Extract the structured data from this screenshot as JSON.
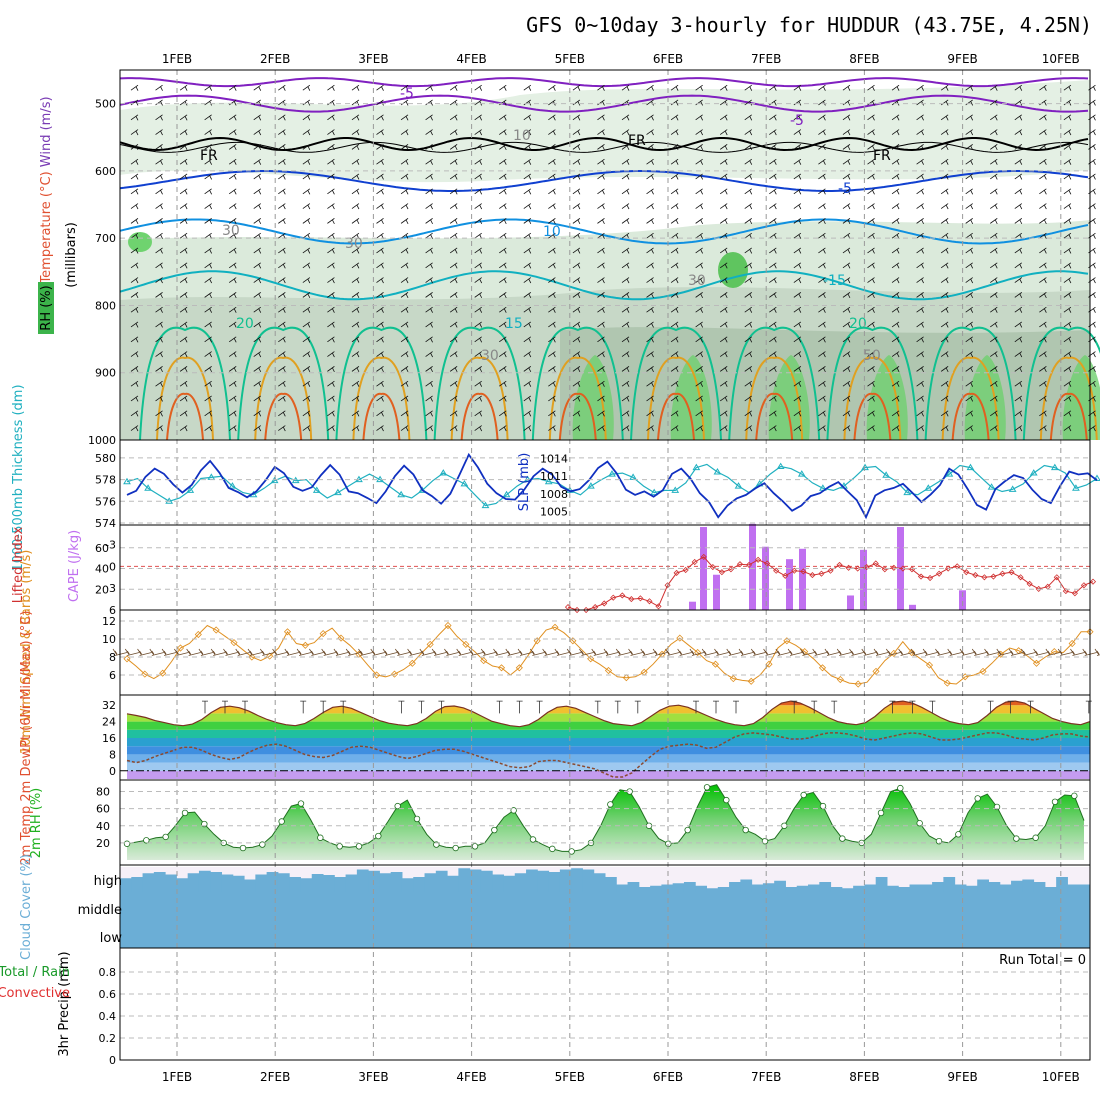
{
  "title": "GFS 0~10day 3-hourly for HUDDUR (43.75E, 4.25N)",
  "dates": [
    "1FEB",
    "2FEB",
    "3FEB",
    "4FEB",
    "5FEB",
    "6FEB",
    "7FEB",
    "8FEB",
    "9FEB",
    "10FEB"
  ],
  "colors": {
    "rh": "#3cb44b",
    "temperature": "#e05030",
    "wind_label": "#7a3cb4",
    "thickness": "#20b0c0",
    "slp": "#1030c0",
    "cape": "#c070f0",
    "lifted": "#d03030",
    "wind10": "#e09020",
    "rh2m": "#20b020",
    "cloud": "#6baed6",
    "precip_conv": "#e03030"
  },
  "chart_data": [
    {
      "type": "contour",
      "panel": "upper-air cross section",
      "ylabel_parts": [
        "RH (%)",
        "Temperature (°C)",
        "Wind (m/s)",
        "(millibars)"
      ],
      "y_ticks": [
        "500",
        "600",
        "700",
        "800",
        "900",
        "1000"
      ],
      "ylim": [
        450,
        1000
      ],
      "contour_labels": [
        "-5",
        "-5",
        "FR",
        "FR",
        "FR",
        "-5",
        "10",
        "15",
        "15",
        "20",
        "20",
        "30",
        "30",
        "30",
        "30",
        "50",
        "10",
        "-5"
      ]
    },
    {
      "type": "line",
      "panel": "thickness-slp",
      "ylabel_left": "1000-500mb Thickness (dm)",
      "ylabel_right": "SLP (mb)",
      "left_ticks": [
        "574",
        "576",
        "578",
        "580"
      ],
      "right_ticks": [
        "1005",
        "1008",
        "1011",
        "1014"
      ],
      "thickness_dm": [
        577.8,
        578.1,
        577.2,
        576.6,
        576.0,
        576.3,
        577.0,
        578.1,
        578.2,
        578.3,
        577.4,
        576.8,
        576.6,
        577.2,
        577.9,
        578.3,
        577.9,
        578.0,
        577.0,
        576.3,
        576.8,
        577.4,
        578.0,
        578.5,
        578.0,
        577.3,
        576.6,
        576.3,
        577.0,
        577.9,
        578.6,
        578.1,
        577.6,
        576.6,
        575.6,
        575.8,
        576.6,
        577.4,
        578.0,
        578.1,
        577.8,
        577.6,
        577.0,
        576.6,
        577.4,
        578.0,
        578.5,
        578.6,
        578.2,
        577.4,
        576.8,
        577.0,
        577.0,
        577.7,
        579.1,
        579.4,
        578.7,
        578.2,
        577.4,
        576.8,
        577.6,
        578.5,
        579.2,
        579.0,
        578.5,
        577.7,
        577.2,
        577.0,
        577.4,
        578.2,
        579.1,
        579.2,
        578.4,
        577.8,
        576.8,
        576.6,
        577.2,
        577.8,
        578.5,
        579.3,
        579.1,
        578.2,
        577.3,
        576.9,
        577.1,
        577.6,
        578.6,
        579.3,
        579.1,
        578.6,
        577.2,
        577.5,
        578.1
      ],
      "slp_mb": [
        1007.8,
        1008.5,
        1010.9,
        1012.3,
        1011.4,
        1009.6,
        1008.2,
        1009.5,
        1012.0,
        1013.6,
        1011.6,
        1009.0,
        1008.3,
        1007.4,
        1008.4,
        1010.3,
        1012.6,
        1011.5,
        1009.2,
        1008.5,
        1009.1,
        1011.2,
        1012.9,
        1011.3,
        1008.4,
        1008.1,
        1007.3,
        1006.4,
        1008.4,
        1011.0,
        1012.8,
        1011.3,
        1008.6,
        1007.6,
        1006.3,
        1008.0,
        1011.3,
        1014.7,
        1012.5,
        1009.7,
        1008.1,
        1007.1,
        1007.0,
        1008.7,
        1011.0,
        1012.3,
        1011.3,
        1009.2,
        1008.4,
        1008.8,
        1010.3,
        1012.4,
        1013.5,
        1011.5,
        1008.7,
        1007.8,
        1008.4,
        1007.5,
        1008.6,
        1011.4,
        1012.3,
        1010.6,
        1008.1,
        1006.6,
        1004.0,
        1006.0,
        1007.2,
        1007.8,
        1008.9,
        1009.8,
        1008.1,
        1006.7,
        1005.1,
        1006.0,
        1007.6,
        1008.1,
        1009.2,
        1010.0,
        1008.4,
        1006.9,
        1004.0,
        1007.7,
        1008.6,
        1009.0,
        1009.7,
        1008.2,
        1006.6,
        1007.9,
        1009.5,
        1012.3,
        1011.3,
        1008.8,
        1006.1,
        1005.3,
        1008.8,
        1010.1,
        1011.2,
        1010.7,
        1008.7,
        1007.1,
        1006.4,
        1009.3,
        1011.8,
        1011.3,
        1011.5,
        1010.3
      ]
    },
    {
      "type": "bar+line",
      "panel": "cape-lifted",
      "ylabel_left": "Lifted Index",
      "ylabel_right": "CAPE (J/kg)",
      "left_ticks": [
        "-3",
        "0",
        "3",
        "6"
      ],
      "right_ticks": [
        "20",
        "40",
        "60"
      ],
      "lifted_index_visible": [
        5.6,
        6,
        6,
        5.6,
        5.1,
        4.3,
        4.0,
        4.5,
        4.4,
        4.8,
        5.5,
        2.6,
        0.9,
        0.5,
        -0.6,
        -1.3,
        0.1,
        0.8,
        0.4,
        -0.3,
        -0.2,
        -0.9,
        -0.4,
        0.6,
        1.3,
        0.6,
        0.7,
        1.2,
        1.0,
        0.6,
        -0.2,
        0.2,
        0.3,
        0.1,
        -0.4,
        0.4,
        0.2,
        0.3,
        0.4,
        1.4,
        1.6,
        1.0,
        0.3,
        0.0,
        0.8,
        1.2,
        1.5,
        1.4,
        1.0,
        0.8,
        1.5,
        2.4,
        3.1,
        2.8,
        1.5,
        3.4,
        3.7,
        2.6,
        2.1
      ],
      "cape_bars_approx": [
        8,
        80,
        34,
        83,
        61,
        49,
        59,
        14,
        58,
        80,
        5,
        19
      ]
    },
    {
      "type": "line",
      "panel": "10m wind",
      "ylabel": "10m Wind Speed & Barbs (m/s)",
      "y_ticks": [
        "6",
        "8",
        "10",
        "12"
      ],
      "speed": [
        7.8,
        7.0,
        6.1,
        5.6,
        6.2,
        7.5,
        9.0,
        9.5,
        10.5,
        11.5,
        11.0,
        10.3,
        9.6,
        8.8,
        8.0,
        7.6,
        8.1,
        9.0,
        10.8,
        9.5,
        9.3,
        9.6,
        10.6,
        11.2,
        10.1,
        9.3,
        8.3,
        7.1,
        6.0,
        5.8,
        6.1,
        6.6,
        7.3,
        8.4,
        9.4,
        10.5,
        11.5,
        10.3,
        9.4,
        8.6,
        7.6,
        7.0,
        6.8,
        6.0,
        6.8,
        8.2,
        9.8,
        11.0,
        11.3,
        10.7,
        9.8,
        8.8,
        7.8,
        7.2,
        6.5,
        5.8,
        5.7,
        5.8,
        6.3,
        7.2,
        8.3,
        9.4,
        10.1,
        9.3,
        8.5,
        7.6,
        7.2,
        6.2,
        5.6,
        5.4,
        5.3,
        6.0,
        7.2,
        9.0,
        9.8,
        9.3,
        8.6,
        7.8,
        6.8,
        5.9,
        5.5,
        5.1,
        5.0,
        5.2,
        6.4,
        7.6,
        8.4,
        9.7,
        8.5,
        7.8,
        7.1,
        5.7,
        5.1,
        5.0,
        5.8,
        6.0,
        6.4,
        7.3,
        8.3,
        9.0,
        8.7,
        8.1,
        7.3,
        8.0,
        8.6,
        8.5,
        9.5,
        10.8,
        10.8
      ]
    },
    {
      "type": "line",
      "panel": "2m temp",
      "ylabel": "2m Temp 2m DewPt (6hr Min/Max) (°C)",
      "y_ticks": [
        "0",
        "8",
        "16",
        "24",
        "32"
      ],
      "temp": [
        27.8,
        27.0,
        26.0,
        24.5,
        23.5,
        22.5,
        22.0,
        22.8,
        25.0,
        28.4,
        31.0,
        31.5,
        30.8,
        29.2,
        27.0,
        25.0,
        23.5,
        22.5,
        22.0,
        23.0,
        25.5,
        28.5,
        31.0,
        31.5,
        30.5,
        28.5,
        26.5,
        24.5,
        23.2,
        22.5,
        22.0,
        23.0,
        25.5,
        29.0,
        31.3,
        31.6,
        30.7,
        28.8,
        26.5,
        24.2,
        23.0,
        22.0,
        21.5,
        22.5,
        25.0,
        28.5,
        31.0,
        31.5,
        30.5,
        28.5,
        26.5,
        24.5,
        23.0,
        22.5,
        22.0,
        23.5,
        26.5,
        29.5,
        31.5,
        32.0,
        31.0,
        29.0,
        27.0,
        25.0,
        23.5,
        22.5,
        22.0,
        23.0,
        26.0,
        30.0,
        33.0,
        34.0,
        33.0,
        31.0,
        28.5,
        26.0,
        24.0,
        23.0,
        22.5,
        23.5,
        26.5,
        30.5,
        33.5,
        34.0,
        33.0,
        31.0,
        28.5,
        26.0,
        24.0,
        23.0,
        22.5,
        23.5,
        27.0,
        31.0,
        33.5,
        34.0,
        33.0,
        30.5,
        28.0,
        25.5,
        24.0,
        23.0,
        22.5,
        24.0
      ],
      "dewpoint": [
        5.0,
        4.0,
        5.0,
        7.0,
        8.5,
        10.0,
        11.5,
        11.5,
        10.0,
        8.0,
        6.5,
        5.5,
        6.5,
        9.0,
        11.0,
        12.5,
        13.0,
        12.0,
        10.0,
        8.0,
        7.0,
        6.5,
        7.5,
        9.5,
        11.5,
        12.0,
        11.5,
        10.0,
        8.5,
        7.0,
        6.0,
        7.0,
        8.5,
        10.0,
        10.5,
        10.5,
        9.5,
        8.0,
        6.5,
        5.0,
        3.5,
        2.0,
        1.5,
        2.0,
        4.5,
        5.0,
        5.0,
        4.0,
        3.0,
        2.0,
        1.0,
        -1.0,
        -3.0,
        -3.0,
        -1.0,
        3.0,
        7.0,
        10.5,
        12.0,
        12.5,
        13.0,
        12.5,
        11.0,
        11.5,
        14.0,
        16.5,
        18.0,
        18.5,
        18.0,
        17.5,
        16.5,
        15.5,
        15.5,
        16.0,
        17.5,
        18.5,
        18.5,
        18.0,
        17.0,
        15.5,
        15.0,
        16.0,
        17.0,
        18.0,
        18.5,
        18.0,
        16.5,
        15.0,
        15.0,
        15.5,
        16.5,
        17.5,
        18.5,
        18.5,
        17.5,
        16.0,
        15.5,
        15.0,
        16.0,
        17.5,
        18.0,
        18.0,
        17.0,
        16.5
      ]
    },
    {
      "type": "area",
      "panel": "2m RH",
      "ylabel": "2m RH (%)",
      "y_ticks": [
        "20",
        "40",
        "60",
        "80"
      ],
      "rh": [
        19,
        21,
        23,
        26,
        27,
        40,
        55,
        56,
        42,
        30,
        20,
        15,
        14,
        15,
        18,
        28,
        45,
        63,
        66,
        47,
        26,
        20,
        16,
        15,
        16,
        20,
        28,
        45,
        63,
        70,
        48,
        30,
        18,
        15,
        14,
        16,
        16,
        20,
        35,
        50,
        58,
        40,
        24,
        18,
        13,
        10,
        10,
        12,
        20,
        40,
        65,
        82,
        80,
        62,
        40,
        25,
        19,
        20,
        35,
        62,
        85,
        88,
        70,
        50,
        35,
        30,
        22,
        25,
        40,
        60,
        76,
        79,
        63,
        40,
        25,
        22,
        20,
        30,
        55,
        80,
        84,
        66,
        43,
        28,
        22,
        20,
        30,
        55,
        72,
        77,
        62,
        40,
        25,
        24,
        26,
        40,
        68,
        76,
        75,
        46
      ]
    },
    {
      "type": "bar",
      "panel": "cloud cover",
      "ylabel": "Cloud Cover (%)",
      "levels": [
        "high",
        "middle",
        "low"
      ]
    },
    {
      "type": "bar",
      "panel": "precip",
      "ylabel": "3hr Precip (mm)",
      "legend": [
        "Total / Rain",
        "Convective"
      ],
      "y_ticks": [
        "0",
        "0.2",
        "0.4",
        "0.6",
        "0.8"
      ],
      "run_total": "Run Total = 0"
    }
  ]
}
